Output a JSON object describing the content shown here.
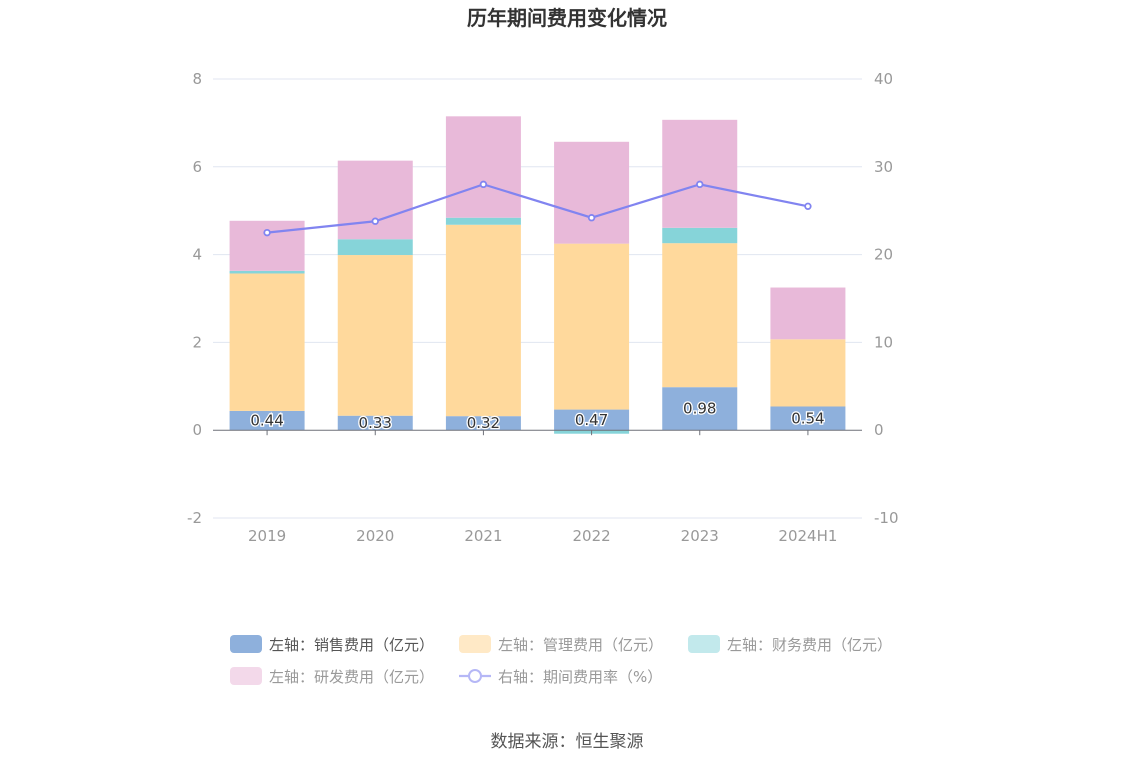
{
  "chart_data": {
    "type": "bar",
    "title": "历年期间费用变化情况",
    "categories": [
      "2019",
      "2020",
      "2021",
      "2022",
      "2023",
      "2024H1"
    ],
    "left_axis": {
      "ticks": [
        -2,
        0,
        2,
        4,
        6,
        8
      ],
      "min": -2,
      "max": 8
    },
    "right_axis": {
      "ticks": [
        -10,
        0,
        10,
        20,
        30,
        40
      ],
      "min": -10,
      "max": 40
    },
    "series": [
      {
        "name": "左轴：销售费用（亿元）",
        "type": "bar",
        "axis": "left",
        "color": "#8eb0dc",
        "values": [
          0.44,
          0.33,
          0.32,
          0.47,
          0.98,
          0.54
        ],
        "labels": [
          "0.44",
          "0.33",
          "0.32",
          "0.47",
          "0.98",
          "0.54"
        ]
      },
      {
        "name": "左轴：管理费用（亿元）",
        "type": "bar",
        "axis": "left",
        "color": "#ffd99c",
        "values": [
          3.13,
          3.66,
          4.36,
          3.78,
          3.28,
          1.53
        ]
      },
      {
        "name": "左轴：财务费用（亿元）",
        "type": "bar",
        "axis": "left",
        "color": "#86d4d9",
        "values": [
          0.06,
          0.36,
          0.16,
          -0.08,
          0.35,
          0.0
        ]
      },
      {
        "name": "左轴：研发费用（亿元）",
        "type": "bar",
        "axis": "left",
        "color": "#e8b9d9",
        "values": [
          1.14,
          1.79,
          2.31,
          2.32,
          2.46,
          1.18
        ]
      },
      {
        "name": "右轴：期间费用率（%）",
        "type": "line",
        "axis": "right",
        "color": "#8184f0",
        "values": [
          22.5,
          23.8,
          28.0,
          24.2,
          28.0,
          25.5
        ]
      }
    ],
    "legend": {
      "placement": "bottom",
      "items": [
        {
          "label": "左轴：销售费用（亿元）",
          "color": "#8eb0dc",
          "shape": "bar",
          "active": true
        },
        {
          "label": "左轴：管理费用（亿元）",
          "color": "#ffe9c6",
          "shape": "bar",
          "active": false
        },
        {
          "label": "左轴：财务费用（亿元）",
          "color": "#c2e9ec",
          "shape": "bar",
          "active": false
        },
        {
          "label": "左轴：研发费用（亿元）",
          "color": "#f3d9ea",
          "shape": "bar",
          "active": false
        },
        {
          "label": "右轴：期间费用率（%）",
          "color": "#b5b7f6",
          "shape": "line",
          "active": false
        }
      ]
    },
    "grid": true
  },
  "source": "数据来源：恒生聚源"
}
